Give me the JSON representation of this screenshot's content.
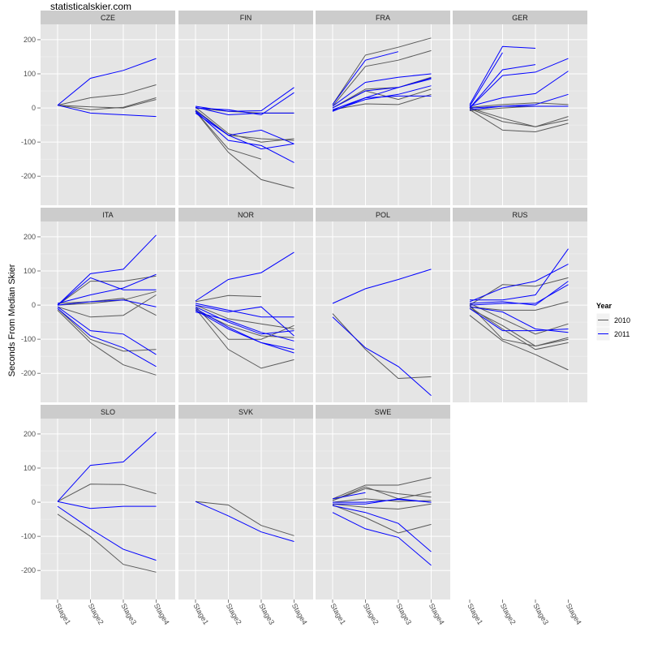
{
  "watermark": "statisticalskier.com",
  "chart_data": {
    "type": "line",
    "facet_by": "country",
    "ylabel": "Seconds From Median Skier",
    "xlabel": "",
    "x_categories": [
      "Stage1",
      "Stage2",
      "Stage3",
      "Stage4"
    ],
    "ylim": [
      -285,
      245
    ],
    "y_ticks": [
      -200,
      -100,
      0,
      100,
      200
    ],
    "grid": true,
    "legend": {
      "title": "Year",
      "position": "right",
      "entries": [
        {
          "label": "2010",
          "color": "#595959"
        },
        {
          "label": "2011",
          "color": "#0000ff"
        }
      ]
    },
    "panels": [
      {
        "title": "CZE",
        "lines": [
          {
            "year": "2010",
            "values": [
              8,
              -5,
              2,
              30
            ]
          },
          {
            "year": "2010",
            "values": [
              8,
              30,
              40,
              68
            ]
          },
          {
            "year": "2010",
            "values": [
              8,
              3,
              0,
              25
            ]
          },
          {
            "year": "2011",
            "values": [
              8,
              87,
              110,
              145
            ]
          },
          {
            "year": "2011",
            "values": [
              8,
              -15,
              -20,
              -25
            ]
          }
        ]
      },
      {
        "title": "FIN",
        "lines": [
          {
            "year": "2010",
            "values": [
              -10,
              -130,
              -210,
              -235
            ]
          },
          {
            "year": "2010",
            "values": [
              -10,
              -120,
              -150,
              null
            ]
          },
          {
            "year": "2010",
            "values": [
              -5,
              -80,
              -90,
              -95
            ]
          },
          {
            "year": "2010",
            "values": [
              0,
              -10,
              -15,
              -15
            ]
          },
          {
            "year": "2010",
            "values": [
              2,
              -75,
              -100,
              -90
            ]
          },
          {
            "year": "2011",
            "values": [
              5,
              -10,
              -8,
              60
            ]
          },
          {
            "year": "2011",
            "values": [
              2,
              -20,
              -15,
              -15
            ]
          },
          {
            "year": "2011",
            "values": [
              0,
              -5,
              -20,
              45
            ]
          },
          {
            "year": "2011",
            "values": [
              -8,
              -80,
              -65,
              -105
            ]
          },
          {
            "year": "2011",
            "values": [
              -10,
              -95,
              -110,
              -160
            ]
          },
          {
            "year": "2011",
            "values": [
              -15,
              -80,
              -120,
              -105
            ]
          }
        ]
      },
      {
        "title": "FRA",
        "lines": [
          {
            "year": "2010",
            "values": [
              10,
              155,
              178,
              205
            ]
          },
          {
            "year": "2010",
            "values": [
              5,
              122,
              140,
              168
            ]
          },
          {
            "year": "2010",
            "values": [
              0,
              55,
              60,
              90
            ]
          },
          {
            "year": "2010",
            "values": [
              -5,
              12,
              10,
              40
            ]
          },
          {
            "year": "2010",
            "values": [
              0,
              50,
              25,
              55
            ]
          },
          {
            "year": "2011",
            "values": [
              10,
              140,
              165,
              null
            ]
          },
          {
            "year": "2011",
            "values": [
              5,
              75,
              90,
              100
            ]
          },
          {
            "year": "2011",
            "values": [
              0,
              50,
              60,
              85
            ]
          },
          {
            "year": "2011",
            "values": [
              -5,
              30,
              60,
              88
            ]
          },
          {
            "year": "2011",
            "values": [
              -8,
              25,
              40,
              65
            ]
          },
          {
            "year": "2011",
            "values": [
              -10,
              30,
              35,
              35
            ]
          }
        ]
      },
      {
        "title": "GER",
        "lines": [
          {
            "year": "2010",
            "values": [
              -5,
              -65,
              -70,
              -45
            ]
          },
          {
            "year": "2010",
            "values": [
              -2,
              -40,
              -55,
              -35
            ]
          },
          {
            "year": "2010",
            "values": [
              0,
              -30,
              -55,
              -25
            ]
          },
          {
            "year": "2010",
            "values": [
              2,
              10,
              15,
              10
            ]
          },
          {
            "year": "2010",
            "values": [
              -8,
              0,
              5,
              5
            ]
          },
          {
            "year": "2011",
            "values": [
              10,
              180,
              175,
              null
            ]
          },
          {
            "year": "2011",
            "values": [
              5,
              162,
              null,
              null
            ]
          },
          {
            "year": "2011",
            "values": [
              0,
              112,
              127,
              null
            ]
          },
          {
            "year": "2011",
            "values": [
              0,
              95,
              105,
              145
            ]
          },
          {
            "year": "2011",
            "values": [
              5,
              30,
              42,
              108
            ]
          },
          {
            "year": "2011",
            "values": [
              0,
              5,
              10,
              40
            ]
          },
          {
            "year": "2011",
            "values": [
              -5,
              5,
              5,
              5
            ]
          }
        ]
      },
      {
        "title": "ITA",
        "lines": [
          {
            "year": "2010",
            "values": [
              -15,
              -110,
              -175,
              -205
            ]
          },
          {
            "year": "2010",
            "values": [
              -10,
              -100,
              -135,
              -130
            ]
          },
          {
            "year": "2010",
            "values": [
              -5,
              -35,
              -30,
              30
            ]
          },
          {
            "year": "2010",
            "values": [
              0,
              70,
              70,
              85
            ]
          },
          {
            "year": "2010",
            "values": [
              5,
              10,
              20,
              -30
            ]
          },
          {
            "year": "2010",
            "values": [
              0,
              5,
              15,
              40
            ]
          },
          {
            "year": "2011",
            "values": [
              0,
              92,
              105,
              205
            ]
          },
          {
            "year": "2011",
            "values": [
              0,
              80,
              45,
              45
            ]
          },
          {
            "year": "2011",
            "values": [
              5,
              30,
              50,
              90
            ]
          },
          {
            "year": "2011",
            "values": [
              0,
              10,
              15,
              -5
            ]
          },
          {
            "year": "2011",
            "values": [
              -5,
              -75,
              -85,
              -145
            ]
          },
          {
            "year": "2011",
            "values": [
              -10,
              -90,
              -125,
              -180
            ]
          }
        ]
      },
      {
        "title": "NOR",
        "lines": [
          {
            "year": "2010",
            "values": [
              10,
              28,
              25,
              null
            ]
          },
          {
            "year": "2010",
            "values": [
              -10,
              -130,
              -185,
              -160
            ]
          },
          {
            "year": "2010",
            "values": [
              -5,
              -100,
              -100,
              -60
            ]
          },
          {
            "year": "2010",
            "values": [
              0,
              -40,
              -55,
              -70
            ]
          },
          {
            "year": "2010",
            "values": [
              -15,
              -60,
              -90,
              -95
            ]
          },
          {
            "year": "2011",
            "values": [
              12,
              75,
              95,
              155
            ]
          },
          {
            "year": "2011",
            "values": [
              5,
              -15,
              -35,
              -35
            ]
          },
          {
            "year": "2011",
            "values": [
              0,
              -20,
              -5,
              -90
            ]
          },
          {
            "year": "2011",
            "values": [
              -5,
              -50,
              -85,
              -75
            ]
          },
          {
            "year": "2011",
            "values": [
              -10,
              -65,
              -110,
              -130
            ]
          },
          {
            "year": "2011",
            "values": [
              -15,
              -70,
              -110,
              -140
            ]
          },
          {
            "year": "2011",
            "values": [
              -20,
              -45,
              -80,
              -105
            ]
          }
        ]
      },
      {
        "title": "POL",
        "lines": [
          {
            "year": "2010",
            "values": [
              -25,
              -130,
              -215,
              -210
            ]
          },
          {
            "year": "2011",
            "values": [
              5,
              48,
              75,
              105
            ]
          },
          {
            "year": "2011",
            "values": [
              -35,
              -125,
              -180,
              -265
            ]
          }
        ]
      },
      {
        "title": "RUS",
        "lines": [
          {
            "year": "2010",
            "values": [
              -30,
              -105,
              -145,
              -190
            ]
          },
          {
            "year": "2010",
            "values": [
              -10,
              -60,
              -120,
              -100
            ]
          },
          {
            "year": "2010",
            "values": [
              -5,
              -70,
              -130,
              -110
            ]
          },
          {
            "year": "2010",
            "values": [
              0,
              -100,
              -120,
              -95
            ]
          },
          {
            "year": "2010",
            "values": [
              0,
              60,
              55,
              80
            ]
          },
          {
            "year": "2010",
            "values": [
              5,
              -40,
              -85,
              -55
            ]
          },
          {
            "year": "2010",
            "values": [
              -5,
              -15,
              -15,
              10
            ]
          },
          {
            "year": "2011",
            "values": [
              15,
              15,
              30,
              165
            ]
          },
          {
            "year": "2011",
            "values": [
              10,
              50,
              70,
              120
            ]
          },
          {
            "year": "2011",
            "values": [
              5,
              10,
              0,
              70
            ]
          },
          {
            "year": "2011",
            "values": [
              0,
              5,
              5,
              60
            ]
          },
          {
            "year": "2011",
            "values": [
              -5,
              -20,
              -70,
              -80
            ]
          },
          {
            "year": "2011",
            "values": [
              -10,
              -75,
              -75,
              -70
            ]
          }
        ]
      },
      {
        "title": "SLO",
        "lines": [
          {
            "year": "2010",
            "values": [
              -35,
              -100,
              -182,
              -205
            ]
          },
          {
            "year": "2010",
            "values": [
              2,
              53,
              52,
              25
            ]
          },
          {
            "year": "2011",
            "values": [
              2,
              108,
              118,
              205
            ]
          },
          {
            "year": "2011",
            "values": [
              2,
              -18,
              -12,
              -12
            ]
          },
          {
            "year": "2011",
            "values": [
              -12,
              -78,
              -138,
              -170
            ]
          }
        ]
      },
      {
        "title": "SVK",
        "lines": [
          {
            "year": "2010",
            "values": [
              2,
              -8,
              -68,
              -98
            ]
          },
          {
            "year": "2011",
            "values": [
              2,
              -40,
              -87,
              -115
            ]
          }
        ]
      },
      {
        "title": "SWE",
        "lines": [
          {
            "year": "2010",
            "values": [
              10,
              50,
              50,
              72
            ]
          },
          {
            "year": "2010",
            "values": [
              5,
              40,
              25,
              15
            ]
          },
          {
            "year": "2010",
            "values": [
              0,
              10,
              2,
              5
            ]
          },
          {
            "year": "2010",
            "values": [
              -5,
              -15,
              -20,
              -5
            ]
          },
          {
            "year": "2010",
            "values": [
              -8,
              -45,
              -90,
              -65
            ]
          },
          {
            "year": "2010",
            "values": [
              5,
              45,
              10,
              30
            ]
          },
          {
            "year": "2011",
            "values": [
              10,
              28,
              null,
              null
            ]
          },
          {
            "year": "2011",
            "values": [
              0,
              0,
              8,
              0
            ]
          },
          {
            "year": "2011",
            "values": [
              -5,
              -5,
              10,
              0
            ]
          },
          {
            "year": "2011",
            "values": [
              -10,
              -30,
              -62,
              -145
            ]
          },
          {
            "year": "2011",
            "values": [
              -30,
              -78,
              -103,
              -185
            ]
          }
        ]
      }
    ]
  }
}
